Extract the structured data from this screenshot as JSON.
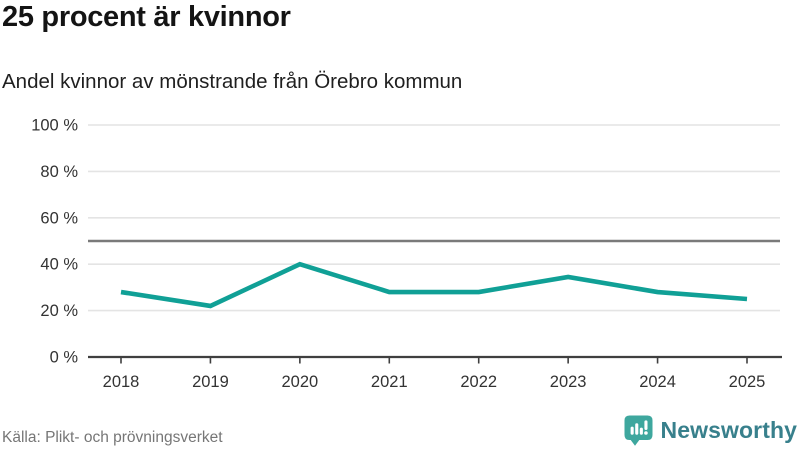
{
  "header": {
    "title": "25 procent är kvinnor",
    "subtitle": "Andel kvinnor av mönstrande från Örebro kommun"
  },
  "chart_data": {
    "type": "line",
    "title": "25 procent är kvinnor",
    "subtitle": "Andel kvinnor av mönstrande från Örebro kommun",
    "categories": [
      "2018",
      "2019",
      "2020",
      "2021",
      "2022",
      "2023",
      "2024",
      "2025"
    ],
    "values": [
      28,
      22,
      40,
      28,
      28,
      34.5,
      28,
      25
    ],
    "xlabel": "",
    "ylabel": "",
    "ylim": [
      0,
      100
    ],
    "yticks": [
      0,
      20,
      40,
      60,
      80,
      100
    ],
    "ytick_labels": [
      "0 %",
      "20 %",
      "40 %",
      "60 %",
      "80 %",
      "100 %"
    ],
    "reference_line": 50,
    "grid": true,
    "legend_position": "none"
  },
  "colors": {
    "line": "#10a096",
    "reference_line": "#7a7a7a",
    "grid_line": "#e4e4e4",
    "axis_line": "#3f3f3f",
    "tick_label": "#333333",
    "brand_icon": "#3ea79e",
    "brand_text": "#38808c"
  },
  "footer": {
    "source": "Källa: Plikt- och prövningsverket",
    "brand": {
      "name": "Newsworthy",
      "icon": "newsworthy-barchart-bubble-icon"
    }
  }
}
